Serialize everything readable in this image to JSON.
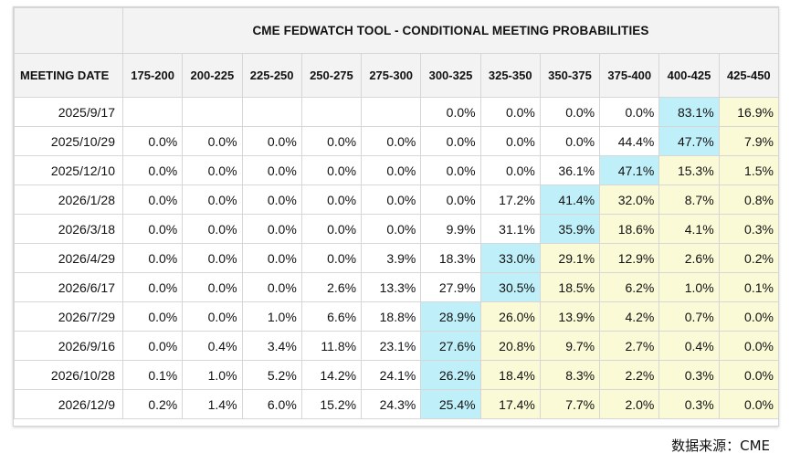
{
  "title": "CME FEDWATCH TOOL - CONDITIONAL MEETING PROBABILITIES",
  "date_header": "MEETING DATE",
  "columns": [
    "175-200",
    "200-225",
    "225-250",
    "250-275",
    "275-300",
    "300-325",
    "325-350",
    "350-375",
    "375-400",
    "400-425",
    "425-450"
  ],
  "rows": [
    {
      "date": "2025/9/17",
      "values": [
        "",
        "",
        "",
        "",
        "",
        "0.0%",
        "0.0%",
        "0.0%",
        "0.0%",
        "83.1%",
        "16.9%"
      ],
      "max_col": 9
    },
    {
      "date": "2025/10/29",
      "values": [
        "0.0%",
        "0.0%",
        "0.0%",
        "0.0%",
        "0.0%",
        "0.0%",
        "0.0%",
        "0.0%",
        "44.4%",
        "47.7%",
        "7.9%"
      ],
      "max_col": 9
    },
    {
      "date": "2025/12/10",
      "values": [
        "0.0%",
        "0.0%",
        "0.0%",
        "0.0%",
        "0.0%",
        "0.0%",
        "0.0%",
        "36.1%",
        "47.1%",
        "15.3%",
        "1.5%"
      ],
      "max_col": 8
    },
    {
      "date": "2026/1/28",
      "values": [
        "0.0%",
        "0.0%",
        "0.0%",
        "0.0%",
        "0.0%",
        "0.0%",
        "17.2%",
        "41.4%",
        "32.0%",
        "8.7%",
        "0.8%"
      ],
      "max_col": 7
    },
    {
      "date": "2026/3/18",
      "values": [
        "0.0%",
        "0.0%",
        "0.0%",
        "0.0%",
        "0.0%",
        "9.9%",
        "31.1%",
        "35.9%",
        "18.6%",
        "4.1%",
        "0.3%"
      ],
      "max_col": 7
    },
    {
      "date": "2026/4/29",
      "values": [
        "0.0%",
        "0.0%",
        "0.0%",
        "0.0%",
        "3.9%",
        "18.3%",
        "33.0%",
        "29.1%",
        "12.9%",
        "2.6%",
        "0.2%"
      ],
      "max_col": 6
    },
    {
      "date": "2026/6/17",
      "values": [
        "0.0%",
        "0.0%",
        "0.0%",
        "2.6%",
        "13.3%",
        "27.9%",
        "30.5%",
        "18.5%",
        "6.2%",
        "1.0%",
        "0.1%"
      ],
      "max_col": 6
    },
    {
      "date": "2026/7/29",
      "values": [
        "0.0%",
        "0.0%",
        "1.0%",
        "6.6%",
        "18.8%",
        "28.9%",
        "26.0%",
        "13.9%",
        "4.2%",
        "0.7%",
        "0.0%"
      ],
      "max_col": 5
    },
    {
      "date": "2026/9/16",
      "values": [
        "0.0%",
        "0.4%",
        "3.4%",
        "11.8%",
        "23.1%",
        "27.6%",
        "20.8%",
        "9.7%",
        "2.7%",
        "0.4%",
        "0.0%"
      ],
      "max_col": 5
    },
    {
      "date": "2026/10/28",
      "values": [
        "0.1%",
        "1.0%",
        "5.2%",
        "14.2%",
        "24.1%",
        "26.2%",
        "18.4%",
        "8.3%",
        "2.2%",
        "0.3%",
        "0.0%"
      ],
      "max_col": 5
    },
    {
      "date": "2026/12/9",
      "values": [
        "0.2%",
        "1.4%",
        "6.0%",
        "15.2%",
        "24.3%",
        "25.4%",
        "17.4%",
        "7.7%",
        "2.0%",
        "0.3%",
        "0.0%"
      ],
      "max_col": 5
    }
  ],
  "colors": {
    "highlight_max": "#bff0fa",
    "highlight_current": "#fbfad6",
    "header_bg": "#f3f3f3",
    "grid": "#d6d6d6"
  },
  "source": "数据来源：CME"
}
